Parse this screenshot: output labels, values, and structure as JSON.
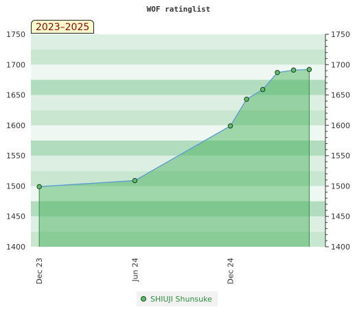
{
  "chart_data": {
    "type": "area",
    "title": "WOF ratinglist",
    "period_label": "2023–2025",
    "x_ticks": [
      {
        "label": "Dec 23",
        "date": "2023-12-01"
      },
      {
        "label": "Jun 24",
        "date": "2024-06-01"
      },
      {
        "label": "Dec 24",
        "date": "2024-12-01"
      }
    ],
    "x_range": [
      "2023-11-15",
      "2025-06-01"
    ],
    "ylim": [
      1400,
      1750
    ],
    "y_ticks": [
      "1750",
      "1700",
      "1650",
      "1600",
      "1550",
      "1500",
      "1450",
      "1400"
    ],
    "series": [
      {
        "name": "SHIUJI Shunsuke",
        "color": "#5fbf6a",
        "points": [
          {
            "date": "2023-12-01",
            "value": 1499
          },
          {
            "date": "2024-06-01",
            "value": 1509
          },
          {
            "date": "2024-12-01",
            "value": 1599
          },
          {
            "date": "2025-01-01",
            "value": 1643
          },
          {
            "date": "2025-02-01",
            "value": 1659
          },
          {
            "date": "2025-03-01",
            "value": 1687
          },
          {
            "date": "2025-04-01",
            "value": 1691
          },
          {
            "date": "2025-05-01",
            "value": 1692
          }
        ]
      }
    ],
    "legend_position": "bottom-center",
    "grid": true,
    "right_axis": true
  }
}
